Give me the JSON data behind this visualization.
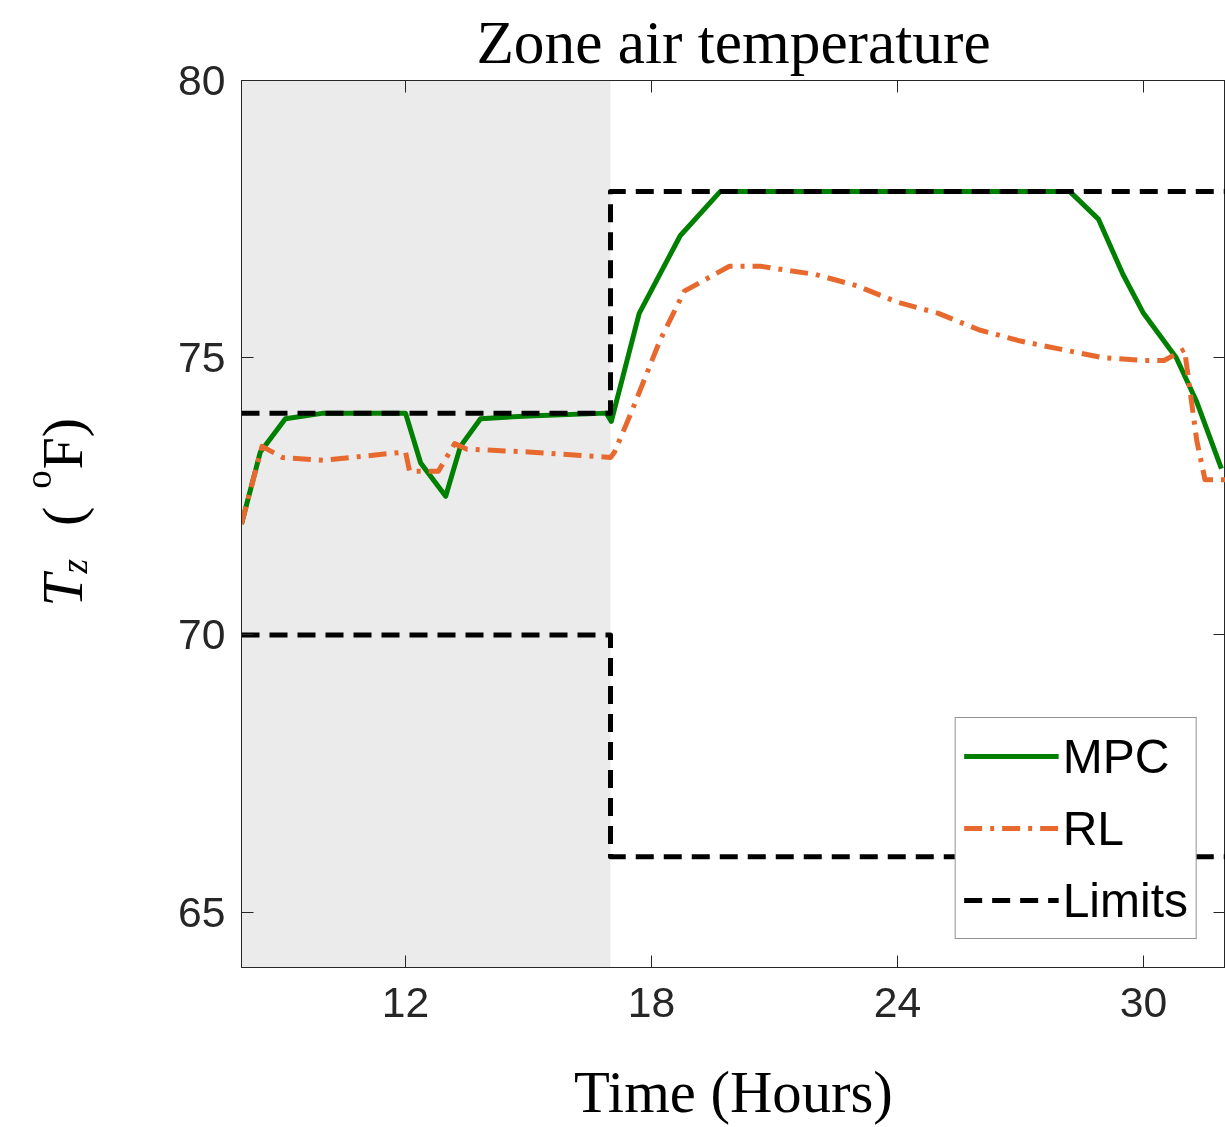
{
  "chart_data": {
    "type": "line",
    "title": "Zone air temperature",
    "xlabel": "Time (Hours)",
    "ylabel": "T$_{z}$ ($^{o}$F)",
    "xlim": [
      8,
      32
    ],
    "ylim": [
      64,
      80
    ],
    "xticks": [
      12,
      18,
      24,
      30
    ],
    "yticks": [
      65,
      70,
      75,
      80
    ],
    "grid": false,
    "legend": "bottom right",
    "bands": [
      {
        "axis": "x",
        "from": 8,
        "to": 17,
        "color": "#ebebeb"
      }
    ],
    "series": [
      {
        "name": "MPC",
        "color": "#008000",
        "line_style": "solid",
        "x": [
          8,
          8.46,
          9.07,
          10,
          12,
          12.37,
          12.98,
          13.34,
          13.83,
          15,
          16.9,
          17.02,
          17.7,
          18.7,
          19.68,
          28.2,
          28.9,
          29.5,
          30,
          30.8,
          31.3,
          31.9
        ],
        "values": [
          72,
          73.3,
          73.9,
          74,
          74,
          73.1,
          72.5,
          73.4,
          73.9,
          73.95,
          74,
          73.85,
          75.8,
          77.2,
          78,
          78,
          77.5,
          76.5,
          75.8,
          75,
          74.2,
          73
        ]
      },
      {
        "name": "RL",
        "color": "#e8692e",
        "line_style": "dashdot",
        "x": [
          8,
          8.5,
          9,
          10,
          12,
          12.1,
          12.8,
          13.2,
          13.5,
          15,
          17,
          17.1,
          17.5,
          18.2,
          18.8,
          19.9,
          20.66,
          22,
          23,
          24,
          25,
          26,
          27,
          28,
          29,
          30,
          30.5,
          31.0,
          31.3,
          31.5,
          32
        ],
        "values": [
          72,
          73.4,
          73.2,
          73.15,
          73.3,
          72.95,
          72.95,
          73.45,
          73.35,
          73.3,
          73.2,
          73.3,
          74,
          75.3,
          76.2,
          76.65,
          76.65,
          76.5,
          76.3,
          76,
          75.8,
          75.5,
          75.3,
          75.15,
          75,
          74.95,
          74.95,
          75.15,
          73.5,
          72.8,
          72.8
        ]
      },
      {
        "name": "Limits",
        "color": "#000000",
        "line_style": "dashed",
        "x": [
          8,
          17,
          17,
          32
        ],
        "values": [
          74,
          74,
          78,
          78
        ]
      },
      {
        "color": "#000000",
        "line_style": "dashed",
        "x": [
          8,
          17,
          17,
          32
        ],
        "values": [
          70,
          70,
          66,
          66
        ]
      }
    ]
  }
}
